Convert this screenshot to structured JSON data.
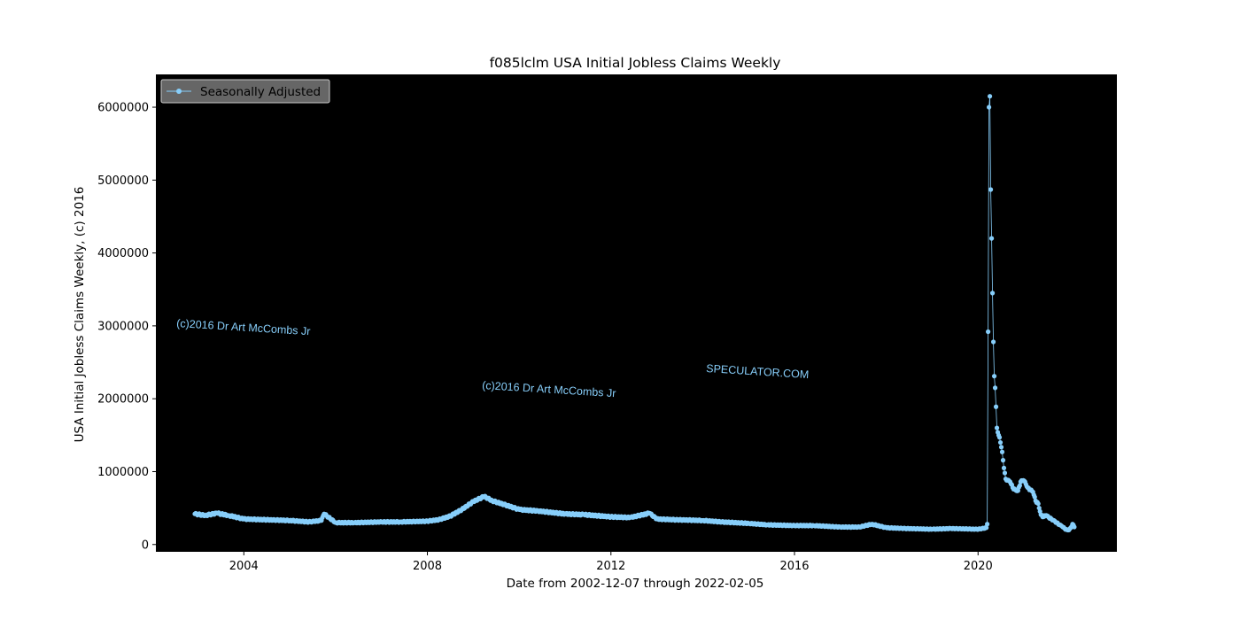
{
  "chart_data": {
    "type": "line",
    "title": "f085lclm USA Initial Jobless Claims Weekly",
    "xlabel": "Date from 2002-12-07 through 2022-02-05",
    "ylabel": "USA Initial Jobless Claims Weekly, (c) 2016",
    "x_start": "2002-12-07",
    "x_end": "2022-02-05",
    "xlim": [
      "2002-01-31",
      "2023-01-10"
    ],
    "ylim": [
      -100000,
      6450000
    ],
    "x_ticks": [
      "2004",
      "2008",
      "2012",
      "2016",
      "2020"
    ],
    "y_ticks": [
      "0",
      "1000000",
      "2000000",
      "3000000",
      "4000000",
      "5000000",
      "6000000"
    ],
    "y_tick_values": [
      0,
      1000000,
      2000000,
      3000000,
      4000000,
      5000000,
      6000000
    ],
    "background": "#000000",
    "series_color": "#87cefa",
    "marker": "circle",
    "grid": false,
    "legend": {
      "position": "top-left",
      "entries": [
        "Seasonally Adjusted"
      ]
    },
    "series": [
      {
        "name": "Seasonally Adjusted",
        "x": [
          "2002-12-07",
          "2003-03-01",
          "2003-06-01",
          "2003-09-01",
          "2004-01-01",
          "2004-07-01",
          "2005-01-01",
          "2005-06-01",
          "2005-09-10",
          "2005-10-01",
          "2006-01-01",
          "2006-06-01",
          "2007-01-01",
          "2007-06-01",
          "2008-01-01",
          "2008-04-01",
          "2008-07-01",
          "2008-10-01",
          "2009-01-01",
          "2009-03-28",
          "2009-06-01",
          "2009-09-01",
          "2010-01-01",
          "2010-06-01",
          "2011-01-01",
          "2011-06-01",
          "2012-01-01",
          "2012-06-01",
          "2012-11-03",
          "2013-01-01",
          "2013-06-01",
          "2014-01-01",
          "2014-06-01",
          "2015-01-01",
          "2015-06-01",
          "2016-01-01",
          "2016-06-01",
          "2017-01-01",
          "2017-06-01",
          "2017-09-09",
          "2018-01-01",
          "2018-06-01",
          "2019-01-01",
          "2019-06-01",
          "2020-01-04",
          "2020-03-07",
          "2020-03-14",
          "2020-03-21",
          "2020-03-28",
          "2020-04-04",
          "2020-04-11",
          "2020-04-18",
          "2020-04-25",
          "2020-05-02",
          "2020-05-09",
          "2020-05-16",
          "2020-05-23",
          "2020-05-30",
          "2020-06-06",
          "2020-06-13",
          "2020-06-20",
          "2020-06-27",
          "2020-07-11",
          "2020-07-25",
          "2020-08-08",
          "2020-08-22",
          "2020-09-12",
          "2020-10-03",
          "2020-10-24",
          "2020-11-14",
          "2020-12-05",
          "2020-12-26",
          "2021-01-09",
          "2021-01-30",
          "2021-02-20",
          "2021-03-13",
          "2021-04-03",
          "2021-04-24",
          "2021-05-15",
          "2021-06-05",
          "2021-06-26",
          "2021-07-17",
          "2021-08-07",
          "2021-08-28",
          "2021-09-18",
          "2021-10-09",
          "2021-10-30",
          "2021-11-20",
          "2021-12-11",
          "2021-12-25",
          "2022-01-08",
          "2022-01-22",
          "2022-02-05"
        ],
        "y": [
          420000,
          400000,
          430000,
          400000,
          350000,
          340000,
          330000,
          310000,
          330000,
          420000,
          300000,
          300000,
          310000,
          310000,
          320000,
          340000,
          390000,
          480000,
          590000,
          660000,
          600000,
          550000,
          480000,
          460000,
          420000,
          410000,
          380000,
          370000,
          430000,
          350000,
          340000,
          330000,
          310000,
          290000,
          270000,
          260000,
          260000,
          240000,
          240000,
          280000,
          230000,
          220000,
          210000,
          220000,
          210000,
          230000,
          280000,
          2920000,
          6000000,
          6150000,
          4870000,
          4200000,
          3450000,
          2780000,
          2310000,
          2150000,
          1890000,
          1600000,
          1540000,
          1500000,
          1470000,
          1400000,
          1270000,
          1050000,
          900000,
          880000,
          860000,
          780000,
          750000,
          740000,
          860000,
          880000,
          860000,
          780000,
          750000,
          720000,
          600000,
          560000,
          410000,
          380000,
          400000,
          370000,
          350000,
          330000,
          300000,
          270000,
          250000,
          220000,
          200000,
          200000,
          230000,
          280000,
          240000
        ]
      }
    ],
    "annotations": [
      {
        "text": "(c)2016 Dr Art McCombs Jr"
      },
      {
        "text": "(c)2016 Dr Art McCombs Jr"
      },
      {
        "text": "SPECULATOR.COM"
      }
    ]
  }
}
